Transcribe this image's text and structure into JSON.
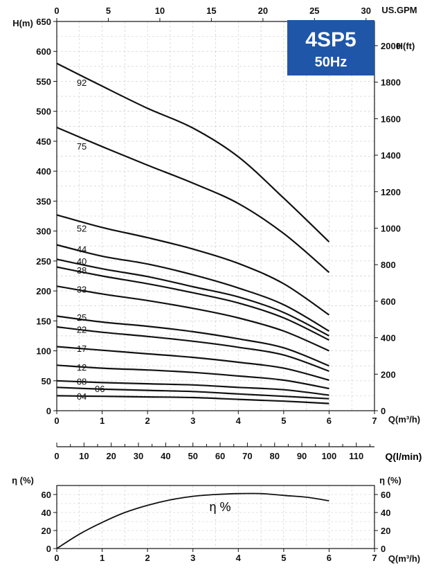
{
  "badge": {
    "model": "4SP5",
    "freq": "50Hz",
    "bg": "#1f56a8",
    "fg": "#ffffff"
  },
  "chart_data": [
    {
      "type": "line",
      "title": "",
      "xlabel": "Q(m³/h)",
      "ylabel": "H(m)",
      "ylabel_right": "H(ft)",
      "xlabel_top": "US.GPM",
      "xlim": [
        0,
        7
      ],
      "ylim": [
        0,
        650
      ],
      "x_ticks": [
        "0",
        "1",
        "2",
        "3",
        "4",
        "5",
        "6",
        "7"
      ],
      "y_ticks": [
        "0",
        "50",
        "100",
        "150",
        "200",
        "250",
        "300",
        "350",
        "400",
        "450",
        "500",
        "550",
        "600",
        "650"
      ],
      "top_ticks": [
        "0",
        "5",
        "10",
        "15",
        "20",
        "25",
        "30"
      ],
      "right_ticks": [
        "0",
        "200",
        "400",
        "600",
        "800",
        "1000",
        "1200",
        "1400",
        "1600",
        "1800",
        "2000"
      ],
      "grid": true,
      "series": [
        {
          "name": "92",
          "x": [
            0,
            1,
            2,
            3,
            4,
            5,
            6
          ],
          "y": [
            580,
            542,
            505,
            472,
            424,
            355,
            282
          ]
        },
        {
          "name": "75",
          "x": [
            0,
            1,
            2,
            3,
            4,
            5,
            6
          ],
          "y": [
            473,
            441,
            410,
            380,
            346,
            296,
            231
          ]
        },
        {
          "name": "52",
          "x": [
            0,
            1,
            2,
            3,
            4,
            5,
            6
          ],
          "y": [
            327,
            306,
            289,
            270,
            246,
            212,
            160
          ]
        },
        {
          "name": "44",
          "x": [
            0,
            1,
            2,
            3,
            4,
            5,
            6
          ],
          "y": [
            277,
            258,
            245,
            227,
            205,
            177,
            133
          ]
        },
        {
          "name": "40",
          "x": [
            0,
            1,
            2,
            3,
            4,
            5,
            6
          ],
          "y": [
            253,
            237,
            224,
            207,
            190,
            164,
            125
          ]
        },
        {
          "name": "38",
          "x": [
            0,
            1,
            2,
            3,
            4,
            5,
            6
          ],
          "y": [
            240,
            225,
            212,
            197,
            180,
            155,
            118
          ]
        },
        {
          "name": "33",
          "x": [
            0,
            1,
            2,
            3,
            4,
            5,
            6
          ],
          "y": [
            208,
            195,
            184,
            171,
            155,
            133,
            100
          ]
        },
        {
          "name": "25",
          "x": [
            0,
            1,
            2,
            3,
            4,
            5,
            6
          ],
          "y": [
            158,
            148,
            141,
            132,
            120,
            105,
            75
          ]
        },
        {
          "name": "22",
          "x": [
            0,
            1,
            2,
            3,
            4,
            5,
            6
          ],
          "y": [
            140,
            131,
            124,
            116,
            106,
            93,
            66
          ]
        },
        {
          "name": "17",
          "x": [
            0,
            1,
            2,
            3,
            4,
            5,
            6
          ],
          "y": [
            107,
            101,
            95,
            89,
            81,
            71,
            51
          ]
        },
        {
          "name": "12",
          "x": [
            0,
            1,
            2,
            3,
            4,
            5,
            6
          ],
          "y": [
            76,
            71,
            68,
            64,
            58,
            51,
            37
          ]
        },
        {
          "name": "08",
          "x": [
            0,
            1,
            2,
            3,
            4,
            5,
            6
          ],
          "y": [
            50,
            47,
            45,
            43,
            39,
            35,
            26
          ]
        },
        {
          "name": "06",
          "x": [
            0,
            1,
            2,
            3,
            4,
            5,
            6
          ],
          "y": [
            39,
            36,
            34,
            32,
            28,
            24,
            20
          ]
        },
        {
          "name": "04",
          "x": [
            0,
            1,
            2,
            3,
            4,
            5,
            6
          ],
          "y": [
            25,
            24,
            23,
            22,
            19,
            16,
            12
          ]
        }
      ],
      "label_points": [
        {
          "text": "92",
          "x": 0.55,
          "y": 548
        },
        {
          "text": "75",
          "x": 0.55,
          "y": 442
        },
        {
          "text": "52",
          "x": 0.55,
          "y": 305
        },
        {
          "text": "44",
          "x": 0.55,
          "y": 270
        },
        {
          "text": "40",
          "x": 0.55,
          "y": 250
        },
        {
          "text": "38",
          "x": 0.55,
          "y": 235
        },
        {
          "text": "33",
          "x": 0.55,
          "y": 203
        },
        {
          "text": "25",
          "x": 0.55,
          "y": 156
        },
        {
          "text": "22",
          "x": 0.55,
          "y": 136
        },
        {
          "text": "17",
          "x": 0.55,
          "y": 104
        },
        {
          "text": "12",
          "x": 0.55,
          "y": 73
        },
        {
          "text": "08",
          "x": 0.55,
          "y": 49
        },
        {
          "text": "06",
          "x": 0.95,
          "y": 37
        },
        {
          "text": "04",
          "x": 0.55,
          "y": 24
        }
      ]
    },
    {
      "type": "line",
      "title": "",
      "xlabel": "Q(l/min)",
      "xlim": [
        0,
        116.67
      ],
      "x_ticks": [
        "0",
        "10",
        "20",
        "30",
        "40",
        "50",
        "60",
        "70",
        "80",
        "90",
        "100",
        "110"
      ]
    },
    {
      "type": "line",
      "title": "",
      "annotation": "η %",
      "xlabel": "Q(m³/h)",
      "ylabel": "η (%)",
      "ylabel_right": "η (%)",
      "xlim": [
        0,
        7
      ],
      "ylim": [
        0,
        60
      ],
      "x_ticks": [
        "0",
        "1",
        "2",
        "3",
        "4",
        "5",
        "6",
        "7"
      ],
      "y_ticks": [
        "0",
        "20",
        "40",
        "60"
      ],
      "grid": true,
      "series": [
        {
          "name": "",
          "x": [
            0,
            0.5,
            1,
            1.5,
            2,
            2.5,
            3,
            3.5,
            4,
            4.5,
            5,
            5.5,
            6
          ],
          "y": [
            0,
            16,
            29,
            40,
            48,
            54,
            58,
            60,
            61,
            61,
            59,
            57,
            53
          ]
        }
      ],
      "annotation_point": {
        "x": 3.6,
        "y": 46
      }
    }
  ]
}
